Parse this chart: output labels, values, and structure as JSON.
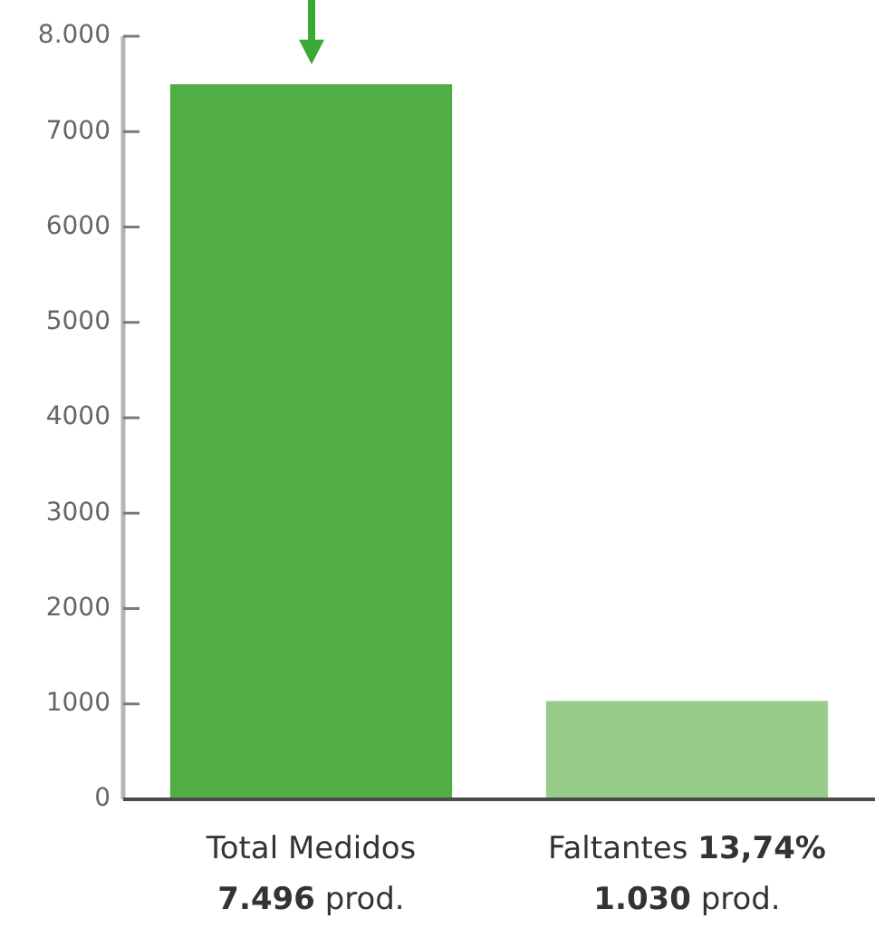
{
  "chart_data": {
    "type": "bar",
    "categories": [
      "Total Medidos",
      "Faltantes 13,74%"
    ],
    "values": [
      7496,
      1030
    ],
    "colors": [
      "#51ae44",
      "#97cc8b"
    ],
    "value_labels": [
      "7.496 prod.",
      "1.030 prod."
    ],
    "ylim": [
      0,
      8000
    ],
    "yticks": [
      0,
      1000,
      2000,
      3000,
      4000,
      5000,
      6000,
      7000,
      {
        "value": 8000,
        "label": "8.000"
      }
    ]
  }
}
